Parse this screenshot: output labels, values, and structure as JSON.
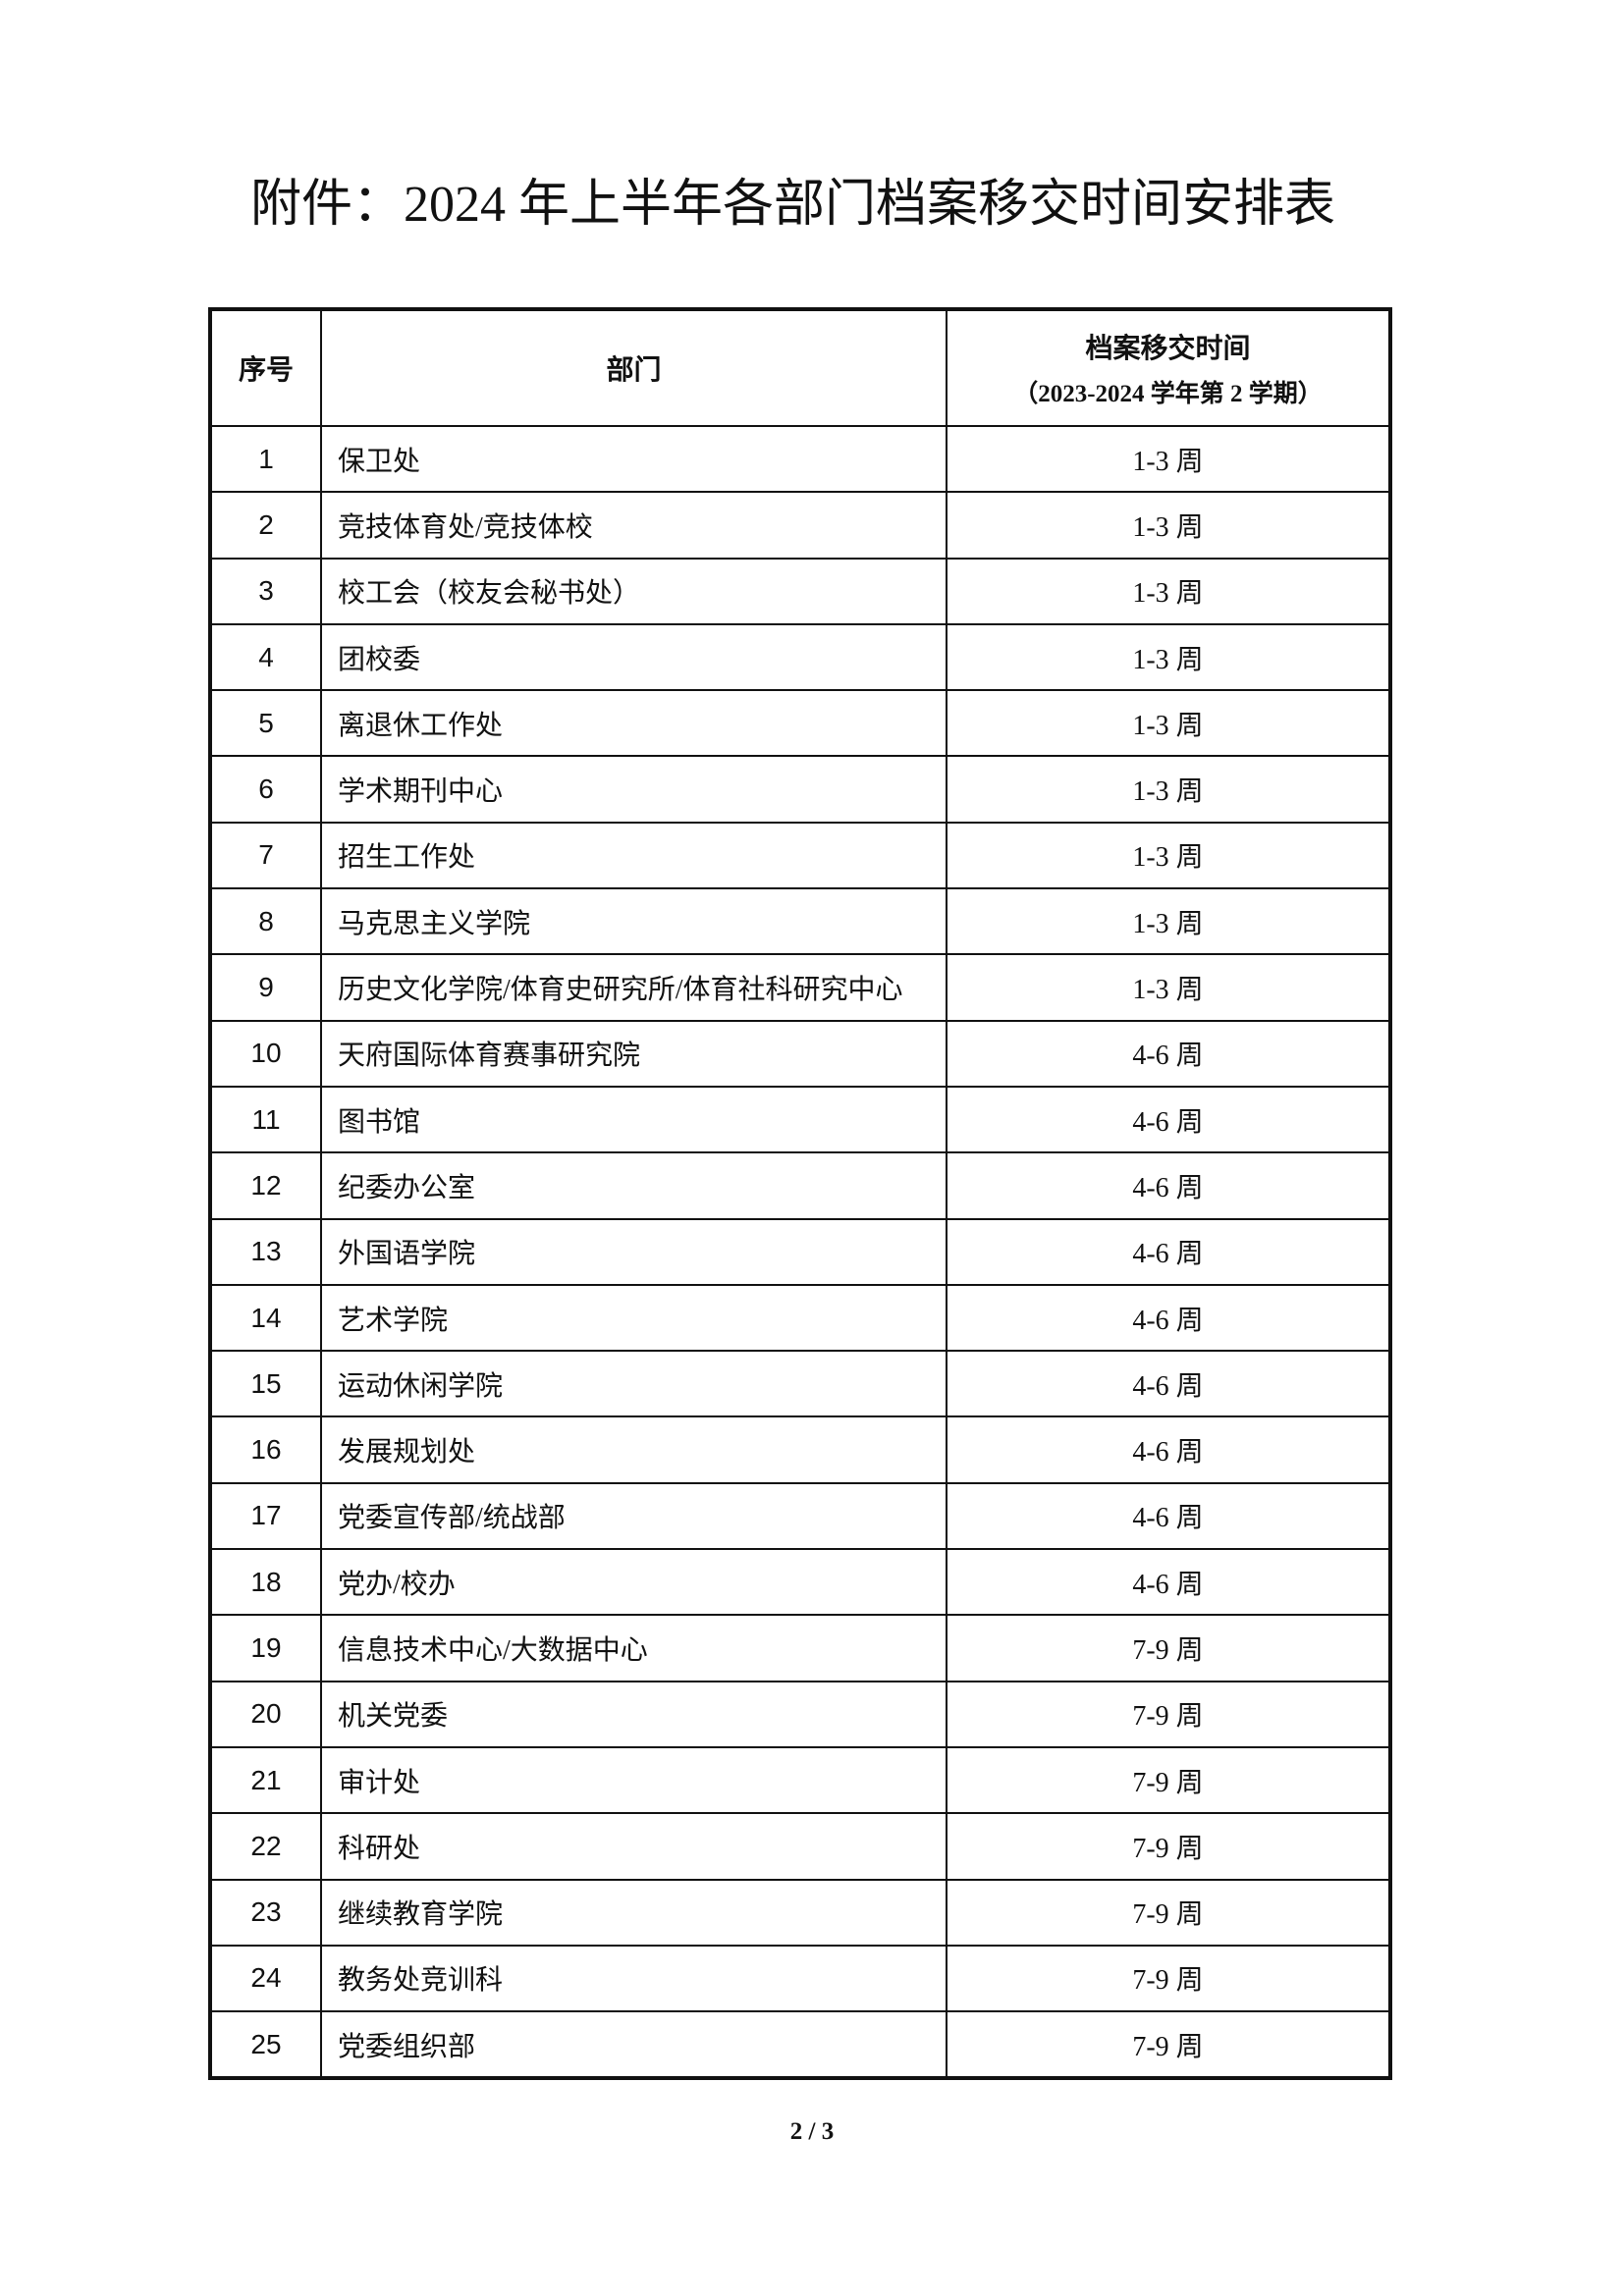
{
  "header": {
    "title": "附件：2024 年上半年各部门档案移交时间安排表"
  },
  "table": {
    "columns": [
      "序号",
      "部门",
      "档案移交时间"
    ],
    "column_note": "（2023-2024 学年第 2 学期）",
    "rows": [
      [
        "1",
        "保卫处",
        "1-3 周"
      ],
      [
        "2",
        "竞技体育处/竞技体校",
        "1-3 周"
      ],
      [
        "3",
        "校工会（校友会秘书处）",
        "1-3 周"
      ],
      [
        "4",
        "团校委",
        "1-3 周"
      ],
      [
        "5",
        "离退休工作处",
        "1-3 周"
      ],
      [
        "6",
        "学术期刊中心",
        "1-3 周"
      ],
      [
        "7",
        "招生工作处",
        "1-3 周"
      ],
      [
        "8",
        "马克思主义学院",
        "1-3 周"
      ],
      [
        "9",
        "历史文化学院/体育史研究所/体育社科研究中心",
        "1-3 周"
      ],
      [
        "10",
        "天府国际体育赛事研究院",
        "4-6 周"
      ],
      [
        "11",
        "图书馆",
        "4-6 周"
      ],
      [
        "12",
        "纪委办公室",
        "4-6 周"
      ],
      [
        "13",
        "外国语学院",
        "4-6 周"
      ],
      [
        "14",
        "艺术学院",
        "4-6 周"
      ],
      [
        "15",
        "运动休闲学院",
        "4-6 周"
      ],
      [
        "16",
        "发展规划处",
        "4-6 周"
      ],
      [
        "17",
        "党委宣传部/统战部",
        "4-6 周"
      ],
      [
        "18",
        "党办/校办",
        "4-6 周"
      ],
      [
        "19",
        "信息技术中心/大数据中心",
        "7-9 周"
      ],
      [
        "20",
        "机关党委",
        "7-9 周"
      ],
      [
        "21",
        "审计处",
        "7-9 周"
      ],
      [
        "22",
        "科研处",
        "7-9 周"
      ],
      [
        "23",
        "继续教育学院",
        "7-9 周"
      ],
      [
        "24",
        "教务处竞训科",
        "7-9 周"
      ],
      [
        "25",
        "党委组织部",
        "7-9 周"
      ]
    ]
  },
  "footer": {
    "page": "2 / 3"
  }
}
